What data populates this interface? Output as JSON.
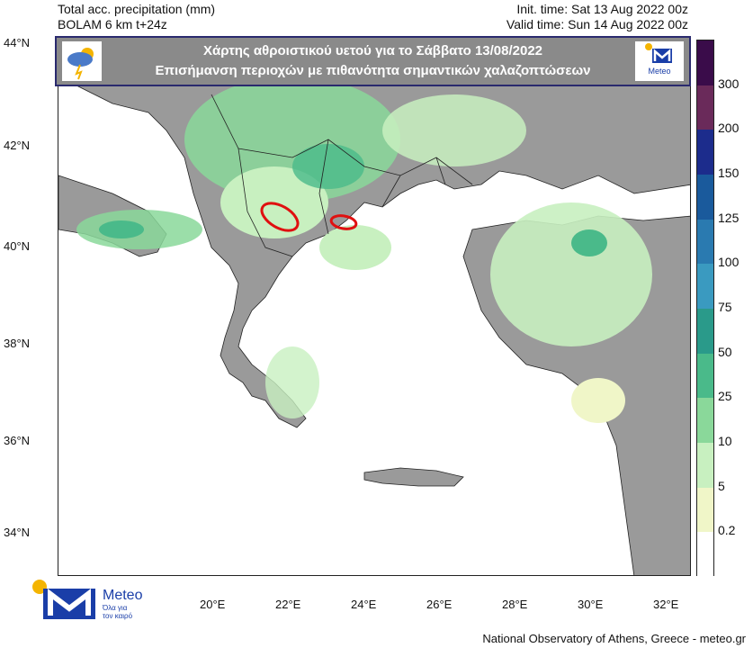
{
  "header": {
    "line1": "Total acc. precipitation (mm)",
    "line2": "BOLAM 6 km t+24z",
    "init_time": "Init. time: Sat 13 Aug 2022 00z",
    "valid_time": "Valid time: Sun 14 Aug 2022 00z"
  },
  "banner": {
    "title": "Χάρτης αθροιστικού  υετού για το Σάββατο 13/08/2022",
    "subtitle": "Επισήμανση περιοχών με πιθανότητα σημαντικών χαλαζοπτώσεων",
    "left_icon": "storm-cloud-icon",
    "right_logo_text": "Meteo"
  },
  "lat_labels": [
    "44°N",
    "42°N",
    "40°N",
    "38°N",
    "36°N",
    "34°N"
  ],
  "lon_labels": [
    "20°E",
    "22°E",
    "24°E",
    "26°E",
    "28°E",
    "30°E",
    "32°E"
  ],
  "colorbar": {
    "labels": [
      "300",
      "200",
      "150",
      "125",
      "100",
      "75",
      "50",
      "25",
      "10",
      "5",
      "0.2"
    ],
    "colors": [
      "#3a0c4a",
      "#6a2a5a",
      "#1c2c8c",
      "#1a5a9c",
      "#2a7ab0",
      "#3a9ac0",
      "#2a9a8a",
      "#4aba8a",
      "#8ad89a",
      "#c8f0c0",
      "#f0f6c8",
      "#ffffff"
    ]
  },
  "map_colors": {
    "land": "#9a9a9a",
    "sea": "#ffffff",
    "hail": "#e01010"
  },
  "logo": {
    "name": "Meteo",
    "tagline1": "Όλα για",
    "tagline2": "τον καιρό"
  },
  "footer": "National Observatory of Athens, Greece - meteo.gr"
}
